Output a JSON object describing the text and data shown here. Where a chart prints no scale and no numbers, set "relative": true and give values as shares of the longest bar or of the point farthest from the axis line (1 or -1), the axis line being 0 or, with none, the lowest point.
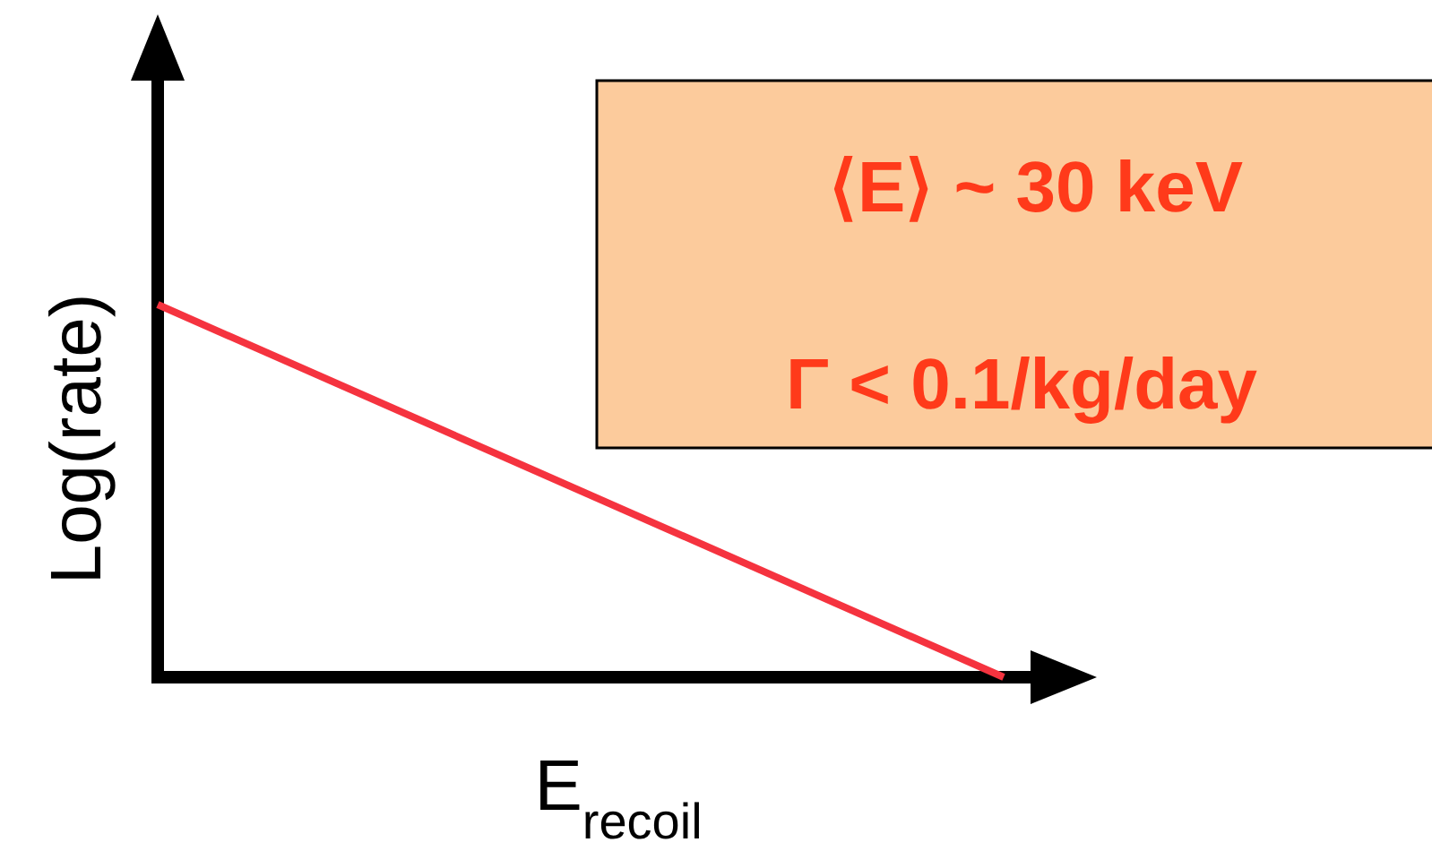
{
  "chart_data": {
    "type": "line",
    "relative": true,
    "xlabel": "E$_{recoil}$",
    "ylabel": "Log(rate)",
    "categories": [
      null,
      null
    ],
    "series": [
      {
        "color": "#f5333f",
        "values": [
          1,
          0
        ]
      }
    ],
    "annotations": [
      "⟨E⟩  ~  30 keV",
      "Γ < 0.1/kg/day"
    ]
  }
}
